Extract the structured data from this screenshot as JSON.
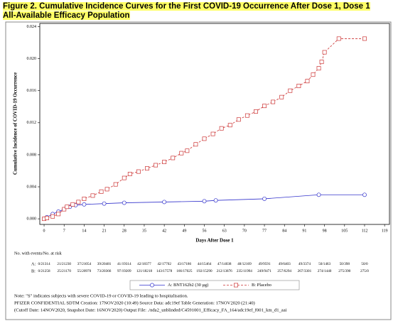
{
  "chart_data": {
    "type": "line",
    "title": "Figure 2. Cumulative Incidence Curves for the First COVID-19 Occurrence After Dose 1, Dose 1",
    "subtitle": "All-Available Efficacy Population",
    "x_label": "Days After Dose 1",
    "y_label": "Cumulative Incidence of COVID-19 Occurrence",
    "xlim": [
      -1.5,
      120.7
    ],
    "ylim": [
      -0.0007,
      0.0244
    ],
    "xticks": [
      0,
      7,
      14,
      21,
      28,
      35,
      42,
      49,
      56,
      63,
      70,
      77,
      84,
      91,
      98,
      105,
      112,
      119
    ],
    "yticks": [
      {
        "value": 0,
        "label": "0.000"
      },
      {
        "value": 0.004,
        "label": "0.004"
      },
      {
        "value": 0.008,
        "label": "0.008"
      },
      {
        "value": 0.012,
        "label": "0.012"
      },
      {
        "value": 0.016,
        "label": "0.016"
      },
      {
        "value": 0.02,
        "label": "0.020"
      },
      {
        "value": 0.024,
        "label": "0.024"
      }
    ],
    "series": [
      {
        "name": "A: BNT162b2 (30 μg)",
        "color": "#3333cc",
        "marker": "circle",
        "dashed": false,
        "x": [
          0,
          1,
          3,
          5,
          7,
          9,
          11,
          14,
          21,
          28,
          42,
          56,
          60,
          77,
          96,
          112
        ],
        "values": [
          0,
          0.0002,
          0.0006,
          0.0009,
          0.0012,
          0.0015,
          0.0017,
          0.0018,
          0.0019,
          0.002,
          0.0021,
          0.0022,
          0.0023,
          0.0025,
          0.003,
          0.003
        ]
      },
      {
        "name": "B: Placebo",
        "color": "#cc3333",
        "marker": "square",
        "dashed": true,
        "x": [
          0,
          1,
          3,
          5,
          7,
          8,
          10,
          12,
          14,
          17,
          20,
          22,
          25,
          28,
          30,
          33,
          36,
          39,
          42,
          45,
          48,
          50,
          53,
          56,
          59,
          62,
          65,
          68,
          71,
          74,
          77,
          80,
          83,
          86,
          89,
          92,
          94,
          96,
          97,
          98,
          103,
          112
        ],
        "values": [
          0,
          0.0001,
          0.0003,
          0.0006,
          0.0012,
          0.0015,
          0.0018,
          0.0021,
          0.0025,
          0.0029,
          0.0034,
          0.0037,
          0.0043,
          0.0051,
          0.0056,
          0.0059,
          0.0063,
          0.0067,
          0.0071,
          0.0076,
          0.0082,
          0.0085,
          0.0093,
          0.01,
          0.0106,
          0.0113,
          0.0117,
          0.0124,
          0.0129,
          0.0134,
          0.0141,
          0.0146,
          0.0152,
          0.016,
          0.0166,
          0.0172,
          0.018,
          0.0188,
          0.0196,
          0.0208,
          0.0225,
          0.0225
        ]
      }
    ],
    "risk_table": {
      "heading": "No. with events/No. at risk",
      "x": [
        0,
        7,
        14,
        21,
        28,
        35,
        42,
        49,
        56,
        63,
        70,
        77,
        84,
        91,
        98,
        105,
        112
      ],
      "rows": [
        {
          "label": "A:",
          "values": [
            "0/21314",
            "21/21230",
            "37/21054",
            "39/20481",
            "41/19314",
            "42/18377",
            "42/17702",
            "43/17186",
            "44/15464",
            "47/14038",
            "48/12169",
            "49/9591",
            "49/6403",
            "49/3374",
            "50/1463",
            "50/398",
            "50/0"
          ]
        },
        {
          "label": "B:",
          "values": [
            "0/21258",
            "25/21170",
            "55/20970",
            "73/20366",
            "97/19209",
            "121/18218",
            "143/17578",
            "166/17025",
            "192/15290",
            "212/13876",
            "235/11994",
            "249/9471",
            "257/6294",
            "267/3301",
            "274/1440",
            "275/390",
            "275/0"
          ]
        }
      ]
    }
  },
  "notes": [
    "Note: \"S\" indicates subjects with severe COVID-19 or COVID-19 leading to hospitalisation.",
    "PFIZER CONFIDENTIAL SDTM Creation: 17NOV2020 (10:49) Source Data: adc19ef Table Generation: 17NOV2020 (21:40)",
    "(Cutoff Date: 14NOV2020, Snapshot Date: 16NOV2020) Output File: ./nda2_unblinded/C4591001_Efficacy_FA_164/adc19ef_f001_km_d1_aai"
  ]
}
